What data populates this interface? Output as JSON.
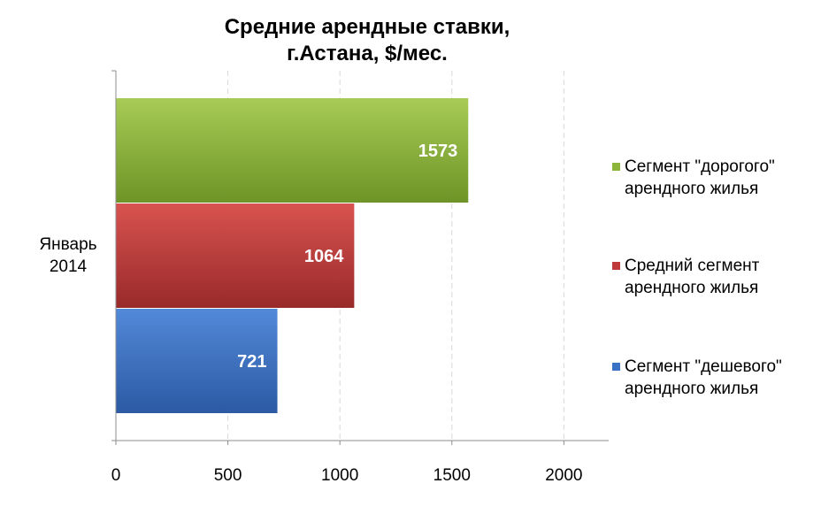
{
  "chart_data": {
    "type": "bar",
    "orientation": "horizontal",
    "title_lines": [
      "Средние арендные ставки,",
      "г.Астана, $/мес."
    ],
    "categories": [
      "Январь 2014"
    ],
    "category_label_lines": [
      "Январь",
      "2014"
    ],
    "series": [
      {
        "name_lines": [
          "Сегмент \"дорогого\"",
          "арендного жилья"
        ],
        "values": [
          1573
        ],
        "color": "#8DB43B"
      },
      {
        "name_lines": [
          "Средний сегмент",
          "арендного жилья"
        ],
        "values": [
          1064
        ],
        "color": "#C0393A"
      },
      {
        "name_lines": [
          "Сегмент \"дешевого\"",
          "арендного жилья"
        ],
        "values": [
          721
        ],
        "color": "#3A72C6"
      }
    ],
    "data_labels": [
      "1573",
      "1064",
      "721"
    ],
    "xlim": [
      0,
      2200
    ],
    "x_ticks": [
      0,
      500,
      1000,
      1500,
      2000
    ],
    "x_tick_labels": [
      "0",
      "500",
      "1000",
      "1500",
      "2000"
    ],
    "grid": "vertical dashed",
    "legend_position": "right"
  }
}
